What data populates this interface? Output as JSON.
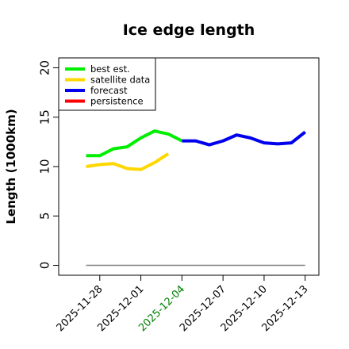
{
  "chart_data": {
    "type": "line",
    "title": "Ice edge length",
    "xlabel": "",
    "ylabel": "Length (1000km)",
    "ylim": [
      -1,
      21
    ],
    "xlim": [
      "2025-11-25",
      "2025-12-14"
    ],
    "yticks": [
      0,
      5,
      10,
      15,
      20
    ],
    "xticks": [
      "2025-11-28",
      "2025-12-01",
      "2025-12-04",
      "2025-12-07",
      "2025-12-10",
      "2025-12-13"
    ],
    "highlight_tick": "2025-12-04",
    "highlight_color": "#008000",
    "legend": {
      "position": "top-left"
    },
    "grid": false,
    "series": [
      {
        "name": "best est.",
        "color": "#00ee00",
        "x": [
          "2025-11-27",
          "2025-11-28",
          "2025-11-29",
          "2025-11-30",
          "2025-12-01",
          "2025-12-02",
          "2025-12-03",
          "2025-12-04"
        ],
        "y": [
          11.1,
          11.1,
          11.8,
          12.0,
          12.9,
          13.6,
          13.3,
          12.6
        ]
      },
      {
        "name": "satellite data",
        "color": "#ffd700",
        "x": [
          "2025-11-27",
          "2025-11-28",
          "2025-11-29",
          "2025-11-30",
          "2025-12-01",
          "2025-12-02",
          "2025-12-03"
        ],
        "y": [
          10.0,
          10.2,
          10.3,
          9.8,
          9.7,
          10.4,
          11.3
        ]
      },
      {
        "name": "forecast",
        "color": "#0000ee",
        "x": [
          "2025-12-04",
          "2025-12-05",
          "2025-12-06",
          "2025-12-07",
          "2025-12-08",
          "2025-12-09",
          "2025-12-10",
          "2025-12-11",
          "2025-12-12",
          "2025-12-13"
        ],
        "y": [
          12.6,
          12.6,
          12.2,
          12.6,
          13.2,
          12.9,
          12.4,
          12.3,
          12.4,
          13.5
        ]
      },
      {
        "name": "persistence",
        "color": "#ff0000",
        "x": [],
        "y": []
      }
    ],
    "baseline": {
      "color": "#808080",
      "x": [
        "2025-11-27",
        "2025-12-13"
      ],
      "y": [
        0,
        0
      ]
    }
  }
}
